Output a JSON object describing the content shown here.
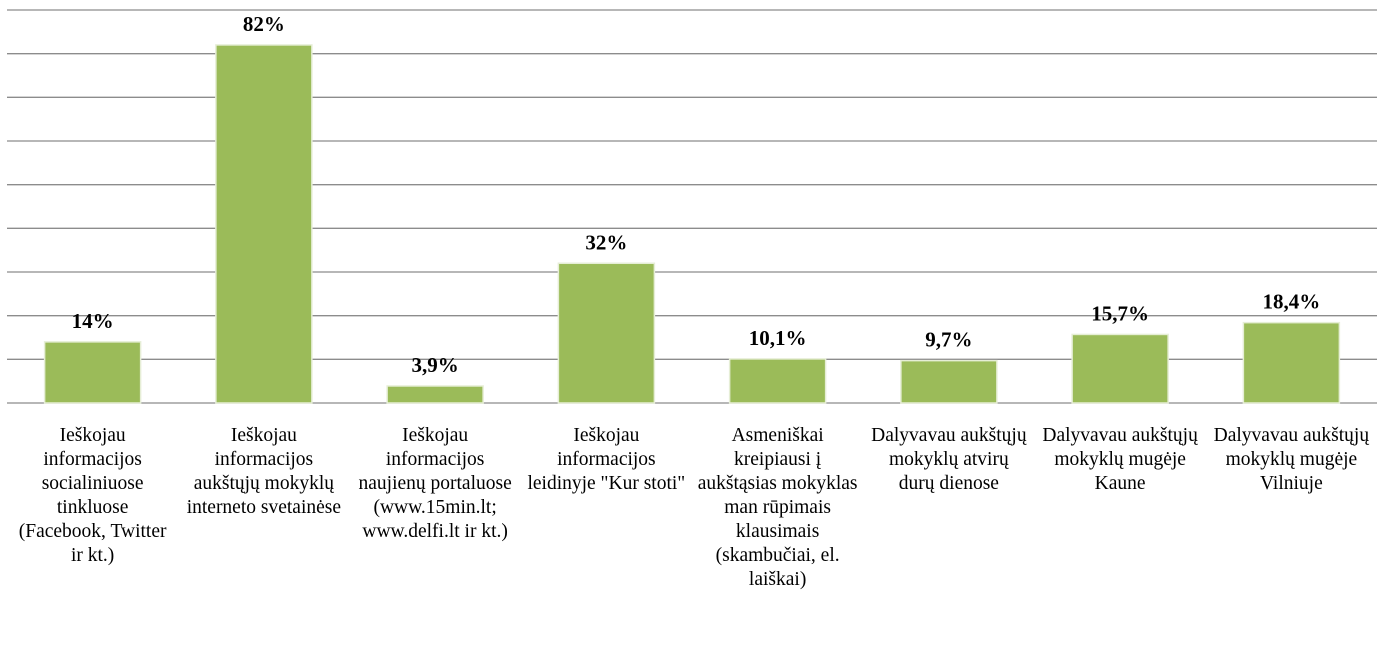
{
  "chart_data": {
    "type": "bar",
    "categories": [
      "Ieškojau informacijos socialiniuose tinkluose (Facebook, Twitter ir kt.)",
      "Ieškojau informacijos aukštųjų mokyklų interneto svetainėse",
      "Ieškojau informacijos naujienų portaluose (www.15min.lt; www.delfi.lt ir kt.)",
      "Ieškojau informacijos leidinyje \"Kur stoti\"",
      "Asmeniškai kreipiausi į aukštąsias mokyklas man rūpimais klausimais (skambučiai, el. laiškai)",
      "Dalyvavau aukštųjų mokyklų atvirų durų dienose",
      "Dalyvavau aukštųjų mokyklų mugėje Kaune",
      "Dalyvavau aukštųjų mokyklų mugėje Vilniuje"
    ],
    "values": [
      14,
      82,
      3.9,
      32,
      10.1,
      9.7,
      15.7,
      18.4
    ],
    "value_labels": [
      "14%",
      "82%",
      "3,9%",
      "32%",
      "10,1%",
      "9,7%",
      "15,7%",
      "18,4%"
    ],
    "color": "#9bbb59",
    "ylim": [
      0,
      90
    ],
    "yticks": [
      0,
      10,
      20,
      30,
      40,
      50,
      60,
      70,
      80,
      90
    ],
    "grid": true
  }
}
